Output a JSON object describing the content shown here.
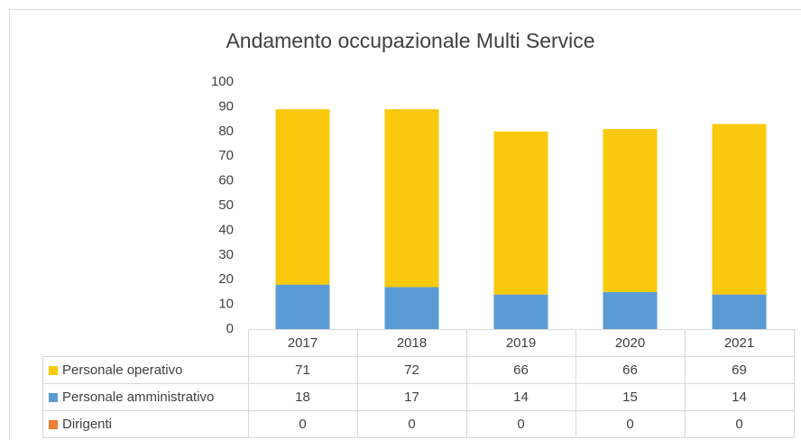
{
  "chart_data": {
    "type": "stacked_bar",
    "title": "Andamento occupazionale Multi Service",
    "categories": [
      "2017",
      "2018",
      "2019",
      "2020",
      "2021"
    ],
    "series": [
      {
        "name": "Personale operativo",
        "color": "#fac90e",
        "values": [
          71,
          72,
          66,
          66,
          69
        ]
      },
      {
        "name": "Personale amministrativo",
        "color": "#5b9bd5",
        "values": [
          18,
          17,
          14,
          15,
          14
        ]
      },
      {
        "name": "Dirigenti",
        "color": "#ed7d31",
        "values": [
          0,
          0,
          0,
          0,
          0
        ]
      }
    ],
    "ylim": [
      0,
      100
    ],
    "yticks": [
      0,
      10,
      20,
      30,
      40,
      50,
      60,
      70,
      80,
      90,
      100
    ],
    "grid": false,
    "data_table": true
  }
}
